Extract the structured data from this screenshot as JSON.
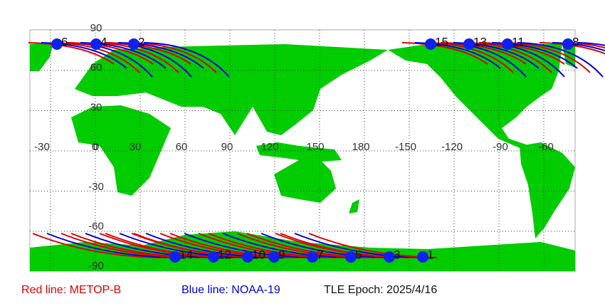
{
  "map": {
    "lat_labels": [
      "90",
      "60",
      "30",
      "0",
      "-30",
      "-60",
      "-90"
    ],
    "lon_labels": [
      "-30",
      "0",
      "30",
      "60",
      "90",
      "120",
      "150",
      "180",
      "-150",
      "-120",
      "-90",
      "-60"
    ],
    "north_passes": [
      "6",
      "4",
      "2",
      "15",
      "13",
      "11",
      "8"
    ],
    "south_passes": [
      "14",
      "12",
      "10",
      "9",
      "7",
      "5",
      "3",
      "1"
    ]
  },
  "legend": {
    "red": "Red line: METOP-B",
    "blue": "Blue line: NOAA-19",
    "epoch": "TLE Epoch: 2025/4/16"
  }
}
